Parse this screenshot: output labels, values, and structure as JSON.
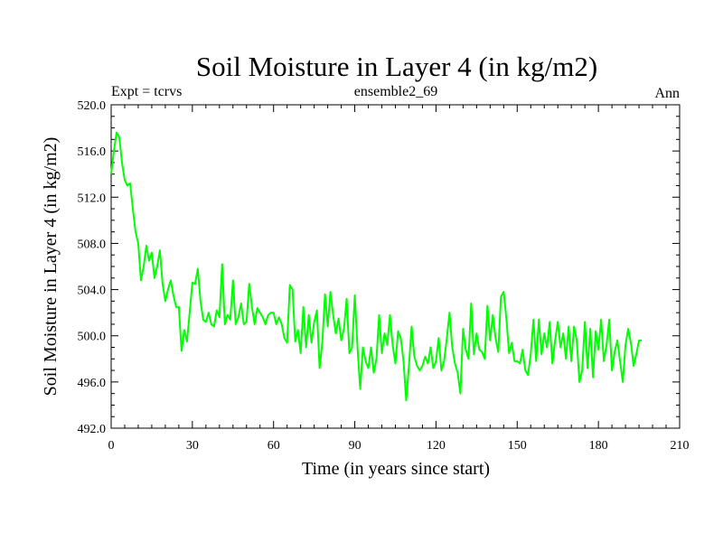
{
  "chart_data": {
    "type": "line",
    "title": "Soil Moisture in Layer 4 (in kg/m2)",
    "subtitle_left": "Expt = tcrvs",
    "subtitle_center": "ensemble2_69",
    "subtitle_right": "Ann",
    "xlabel": "Time (in years since start)",
    "ylabel": "Soil Moisture in Layer 4 (in kg/m2)",
    "xlim": [
      0,
      210
    ],
    "ylim": [
      492,
      520
    ],
    "x_ticks": [
      0,
      30,
      60,
      90,
      120,
      150,
      180,
      210
    ],
    "x_tick_labels": [
      "0",
      "30",
      "60",
      "90",
      "120",
      "150",
      "180",
      "210"
    ],
    "y_ticks": [
      492,
      496,
      500,
      504,
      508,
      512,
      516,
      520
    ],
    "y_tick_labels": [
      "492.0",
      "496.0",
      "500.0",
      "504.0",
      "508.0",
      "512.0",
      "516.0",
      "520.0"
    ],
    "x_minor_step": 5,
    "y_minor_step": 1,
    "series": [
      {
        "name": "Soil Moisture Layer 4",
        "color": "#00ff00",
        "x_start": 0,
        "x_step": 1,
        "values": [
          514.0,
          516.0,
          517.6,
          517.2,
          515.0,
          513.5,
          513.0,
          513.2,
          511.0,
          509.0,
          508.0,
          504.8,
          506.0,
          507.8,
          506.5,
          507.2,
          505.0,
          506.0,
          507.4,
          504.5,
          503.0,
          504.0,
          504.8,
          503.5,
          502.5,
          502.5,
          498.7,
          500.5,
          499.5,
          502.0,
          504.6,
          504.5,
          505.8,
          503.0,
          501.4,
          501.2,
          502.0,
          501.0,
          500.8,
          502.2,
          501.6,
          506.2,
          501.0,
          501.8,
          501.4,
          504.8,
          501.0,
          501.6,
          502.8,
          501.0,
          501.2,
          504.5,
          502.5,
          501.0,
          502.4,
          502.0,
          501.6,
          501.0,
          501.8,
          502.0,
          502.0,
          501.0,
          501.6,
          501.0,
          499.8,
          499.4,
          504.4,
          504.0,
          499.5,
          500.5,
          498.5,
          502.5,
          499.0,
          501.8,
          499.4,
          501.2,
          502.2,
          497.2,
          499.4,
          503.6,
          500.8,
          503.8,
          501.8,
          500.2,
          501.5,
          499.6,
          500.6,
          503.2,
          498.5,
          499.0,
          503.5,
          499.0,
          495.4,
          499.0,
          497.8,
          497.2,
          499.0,
          496.8,
          498.0,
          501.8,
          498.5,
          500.2,
          499.2,
          501.8,
          499.2,
          497.6,
          500.4,
          499.8,
          497.8,
          494.4,
          497.4,
          500.8,
          498.2,
          497.4,
          497.0,
          497.4,
          498.2,
          497.6,
          499.0,
          497.2,
          497.8,
          499.8,
          497.0,
          497.8,
          499.8,
          502.0,
          499.0,
          497.6,
          496.8,
          495.0,
          500.6,
          498.8,
          498.0,
          502.8,
          498.4,
          500.2,
          498.8,
          498.6,
          498.0,
          502.6,
          499.6,
          501.8,
          499.8,
          498.6,
          503.4,
          503.8,
          501.5,
          498.5,
          499.4,
          497.8,
          497.8,
          497.6,
          498.8,
          497.0,
          496.6,
          498.4,
          501.4,
          497.8,
          501.4,
          498.4,
          500.2,
          499.0,
          501.2,
          497.6,
          499.6,
          501.2,
          499.0,
          500.2,
          498.0,
          500.8,
          497.8,
          500.8,
          499.6,
          496.0,
          497.0,
          501.2,
          497.2,
          500.6,
          496.4,
          500.4,
          498.8,
          501.4,
          497.8,
          499.2,
          501.4,
          497.0,
          498.6,
          499.6,
          497.8,
          496.0,
          499.2,
          500.6,
          499.4,
          497.4,
          498.4,
          499.6,
          499.6
        ]
      }
    ]
  }
}
